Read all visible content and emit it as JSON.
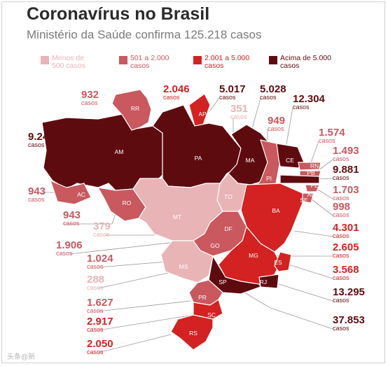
{
  "header": {
    "title": "Coronavírus no Brasil",
    "subtitle": "Ministério da Saúde confirma 125.218 casos"
  },
  "colors": {
    "lt500": "#e8b4b6",
    "r501_2000": "#c9585f",
    "r2001_5000": "#d42121",
    "gt5000": "#5e0b10",
    "border": "#ffffff"
  },
  "legend": [
    {
      "key": "lt500",
      "line1": "Menos de",
      "line2": "500 casos"
    },
    {
      "key": "r501_2000",
      "line1": "501 a 2.000",
      "line2": "casos"
    },
    {
      "key": "r2001_5000",
      "line1": "2.001 a 5.000",
      "line2": "casos"
    },
    {
      "key": "gt5000",
      "line1": "Acima de 5.000",
      "line2": "casos"
    }
  ],
  "casos_label": "casos",
  "watermark": "头条@新",
  "chart_data": {
    "type": "choropleth",
    "title": "Coronavírus no Brasil",
    "subtitle": "Ministério da Saúde confirma 125.218 casos",
    "total": "125.218",
    "states": [
      {
        "uf": "AM",
        "cases": 9243,
        "label": "9.243",
        "cls": "gt5000"
      },
      {
        "uf": "RR",
        "cases": 932,
        "label": "932",
        "cls": "r501_2000"
      },
      {
        "uf": "AP",
        "cases": 2046,
        "label": "2.046",
        "cls": "r2001_5000"
      },
      {
        "uf": "PA",
        "cases": 5017,
        "label": "5.017",
        "cls": "gt5000"
      },
      {
        "uf": "MA",
        "cases": 5028,
        "label": "5.028",
        "cls": "gt5000"
      },
      {
        "uf": "TO",
        "cases": 351,
        "label": "351",
        "cls": "lt500"
      },
      {
        "uf": "PI",
        "cases": 949,
        "label": "949",
        "cls": "r501_2000"
      },
      {
        "uf": "CE",
        "cases": 12304,
        "label": "12.304",
        "cls": "gt5000"
      },
      {
        "uf": "RN",
        "cases": 1574,
        "label": "1.574",
        "cls": "r501_2000"
      },
      {
        "uf": "PB",
        "cases": 1493,
        "label": "1.493",
        "cls": "r501_2000"
      },
      {
        "uf": "PE",
        "cases": 9881,
        "label": "9.881",
        "cls": "gt5000"
      },
      {
        "uf": "AL",
        "cases": 1703,
        "label": "1.703",
        "cls": "r501_2000"
      },
      {
        "uf": "SE",
        "cases": 998,
        "label": "998",
        "cls": "r501_2000"
      },
      {
        "uf": "BA",
        "cases": 4301,
        "label": "4.301",
        "cls": "r2001_5000"
      },
      {
        "uf": "AC",
        "cases": 943,
        "label": "943",
        "cls": "r501_2000"
      },
      {
        "uf": "RO",
        "cases": 943,
        "label": "943",
        "cls": "r501_2000"
      },
      {
        "uf": "MT",
        "cases": 379,
        "label": "379",
        "cls": "lt500"
      },
      {
        "uf": "DF",
        "cases": 1906,
        "label": "1.906",
        "cls": "r501_2000"
      },
      {
        "uf": "GO",
        "cases": 1024,
        "label": "1.024",
        "cls": "r501_2000"
      },
      {
        "uf": "MG",
        "cases": 2605,
        "label": "2.605",
        "cls": "r2001_5000"
      },
      {
        "uf": "ES",
        "cases": 3568,
        "label": "3.568",
        "cls": "r2001_5000"
      },
      {
        "uf": "MS",
        "cases": 288,
        "label": "288",
        "cls": "lt500"
      },
      {
        "uf": "RJ",
        "cases": 13295,
        "label": "13.295",
        "cls": "gt5000"
      },
      {
        "uf": "SP",
        "cases": 37853,
        "label": "37.853",
        "cls": "gt5000"
      },
      {
        "uf": "PR",
        "cases": 1627,
        "label": "1.627",
        "cls": "r501_2000"
      },
      {
        "uf": "SC",
        "cases": 2917,
        "label": "2.917",
        "cls": "r2001_5000"
      },
      {
        "uf": "RS",
        "cases": 2050,
        "label": "2.050",
        "cls": "r2001_5000"
      }
    ]
  }
}
